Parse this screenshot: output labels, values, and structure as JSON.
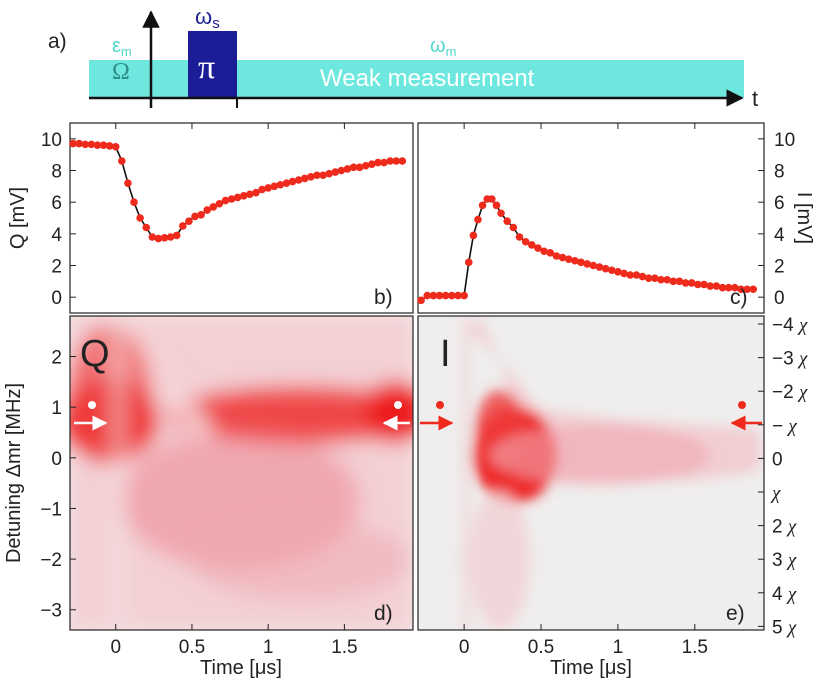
{
  "panel_a": {
    "label": "a)",
    "t_label": "t",
    "eps_label": "ε",
    "eps_sub": "m",
    "omega_m_label": "ω",
    "omega_m_sub": "m",
    "omega_s_label": "ω",
    "omega_s_sub": "s",
    "rabi_label": "Ω",
    "pi_label": "π",
    "measurement_label": "Weak measurement",
    "colors": {
      "measurement": "#6ee8df",
      "pi_pulse": "#1c1c96",
      "label_cyan": "#52d6cc",
      "label_blue": "#1c1c96"
    }
  },
  "chart_data": [
    {
      "panel": "b)",
      "type": "scatter",
      "ylabel": "Q [mV]",
      "ylim": [
        -1,
        11
      ],
      "yticks": [
        "0",
        "2",
        "4",
        "6",
        "8",
        "10"
      ],
      "xlim": [
        -0.3,
        1.95
      ],
      "marker_color": "#ee2a1c",
      "fit_color": "#111111",
      "x": [
        -0.28,
        -0.24,
        -0.2,
        -0.16,
        -0.12,
        -0.08,
        -0.04,
        0.0,
        0.04,
        0.08,
        0.12,
        0.16,
        0.2,
        0.24,
        0.28,
        0.32,
        0.36,
        0.4,
        0.44,
        0.48,
        0.52,
        0.56,
        0.6,
        0.64,
        0.68,
        0.72,
        0.76,
        0.8,
        0.84,
        0.88,
        0.92,
        0.96,
        1.0,
        1.04,
        1.08,
        1.12,
        1.16,
        1.2,
        1.24,
        1.28,
        1.32,
        1.36,
        1.4,
        1.44,
        1.48,
        1.52,
        1.56,
        1.6,
        1.64,
        1.68,
        1.72,
        1.76,
        1.8,
        1.84,
        1.88
      ],
      "y": [
        9.7,
        9.7,
        9.65,
        9.65,
        9.6,
        9.6,
        9.55,
        9.5,
        8.6,
        7.2,
        6.0,
        5.0,
        4.4,
        3.8,
        3.7,
        3.75,
        3.8,
        3.9,
        4.5,
        4.8,
        5.1,
        5.2,
        5.5,
        5.7,
        5.9,
        6.1,
        6.2,
        6.3,
        6.4,
        6.5,
        6.6,
        6.8,
        6.9,
        7.0,
        7.1,
        7.2,
        7.3,
        7.4,
        7.5,
        7.6,
        7.7,
        7.7,
        7.8,
        7.9,
        8.0,
        8.1,
        8.2,
        8.2,
        8.3,
        8.4,
        8.5,
        8.5,
        8.6,
        8.6,
        8.6
      ]
    },
    {
      "panel": "c)",
      "type": "scatter",
      "ylabel": "I [mV]",
      "ylim": [
        -1,
        11
      ],
      "yticks": [
        "0",
        "2",
        "4",
        "6",
        "8",
        "10"
      ],
      "xlim": [
        -0.3,
        1.95
      ],
      "marker_color": "#ee2a1c",
      "fit_color": "#111111",
      "x": [
        -0.28,
        -0.24,
        -0.2,
        -0.16,
        -0.12,
        -0.08,
        -0.04,
        0.0,
        0.03,
        0.06,
        0.09,
        0.12,
        0.15,
        0.18,
        0.21,
        0.24,
        0.28,
        0.32,
        0.36,
        0.4,
        0.44,
        0.48,
        0.52,
        0.56,
        0.6,
        0.64,
        0.68,
        0.72,
        0.76,
        0.8,
        0.84,
        0.88,
        0.92,
        0.96,
        1.0,
        1.04,
        1.08,
        1.12,
        1.16,
        1.2,
        1.24,
        1.28,
        1.32,
        1.36,
        1.4,
        1.44,
        1.48,
        1.52,
        1.56,
        1.6,
        1.64,
        1.68,
        1.72,
        1.76,
        1.8,
        1.84,
        1.88
      ],
      "y": [
        -0.2,
        0.1,
        0.1,
        0.1,
        0.1,
        0.1,
        0.1,
        0.1,
        2.2,
        3.9,
        4.9,
        5.8,
        6.2,
        6.2,
        5.8,
        5.3,
        4.8,
        4.4,
        3.8,
        3.5,
        3.3,
        3.1,
        2.9,
        2.8,
        2.6,
        2.5,
        2.4,
        2.3,
        2.2,
        2.1,
        2.0,
        1.9,
        1.8,
        1.7,
        1.6,
        1.5,
        1.4,
        1.4,
        1.3,
        1.2,
        1.2,
        1.1,
        1.1,
        1.0,
        1.0,
        0.9,
        0.9,
        0.8,
        0.8,
        0.7,
        0.7,
        0.6,
        0.6,
        0.6,
        0.5,
        0.5,
        0.5
      ]
    },
    {
      "panel": "d)",
      "type": "heatmap",
      "big_label": "Q",
      "xlabel": "Time [μs]",
      "ylabel": "Detuning Δmr [MHz]",
      "xlim": [
        -0.3,
        1.95
      ],
      "ylim": [
        -3.4,
        2.8
      ],
      "xticks": [
        "0",
        "0.5",
        "1",
        "1.5"
      ],
      "yticks": [
        "−3",
        "−2",
        "−1",
        "0",
        "1",
        "2"
      ],
      "colormap": [
        "#f2f2f2",
        "#ee1c1c"
      ],
      "marker_detuning": 0.95,
      "marker_color": "#ffffff"
    },
    {
      "panel": "e)",
      "type": "heatmap",
      "big_label": "I",
      "xlabel": "Time [μs]",
      "xlim": [
        -0.3,
        1.95
      ],
      "ylim": [
        -3.4,
        2.8
      ],
      "xticks": [
        "0",
        "0.5",
        "1",
        "1.5"
      ],
      "colormap": [
        "#f2f2f2",
        "#ee1c1c"
      ],
      "marker_detuning": 0.95,
      "marker_color": "#ee2a1c",
      "right_axis_symbol": "χ",
      "right_ticks": [
        "−4",
        "−3",
        "−2",
        "−",
        "0",
        "",
        "2",
        "3",
        "4",
        "5"
      ],
      "right_tick_values": [
        -4,
        -3,
        -2,
        -1,
        0,
        1,
        2,
        3,
        4,
        5
      ]
    }
  ]
}
